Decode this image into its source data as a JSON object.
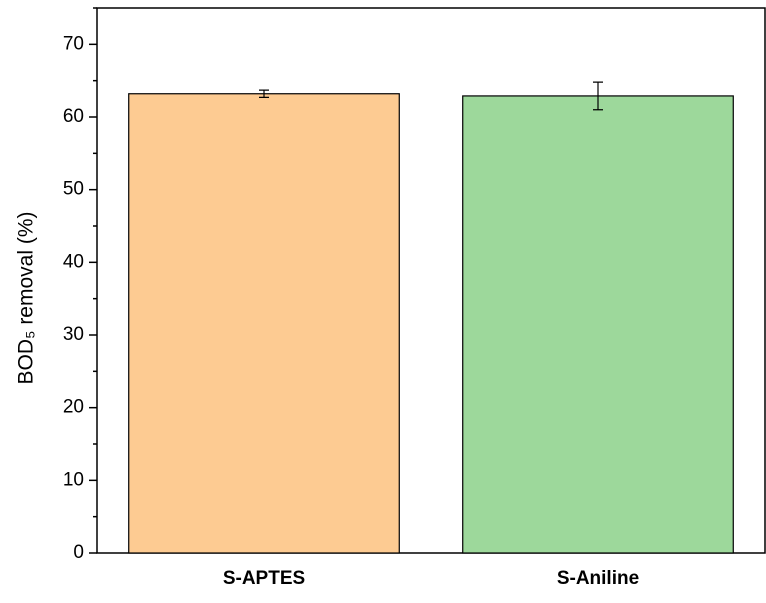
{
  "chart_data": {
    "type": "bar",
    "y_label": "BOD₅ removal (%)",
    "categories": [
      "S-APTES",
      "S-Aniline"
    ],
    "values": [
      63.2,
      62.9
    ],
    "errors": [
      0.5,
      1.9
    ],
    "colors": [
      "#fdcb92",
      "#9dd89b"
    ],
    "ylim": [
      0,
      75
    ],
    "yticks": [
      0,
      10,
      20,
      30,
      40,
      50,
      60,
      70
    ],
    "minor_yticks": [
      5,
      15,
      25,
      35,
      45,
      55,
      65,
      75
    ]
  }
}
